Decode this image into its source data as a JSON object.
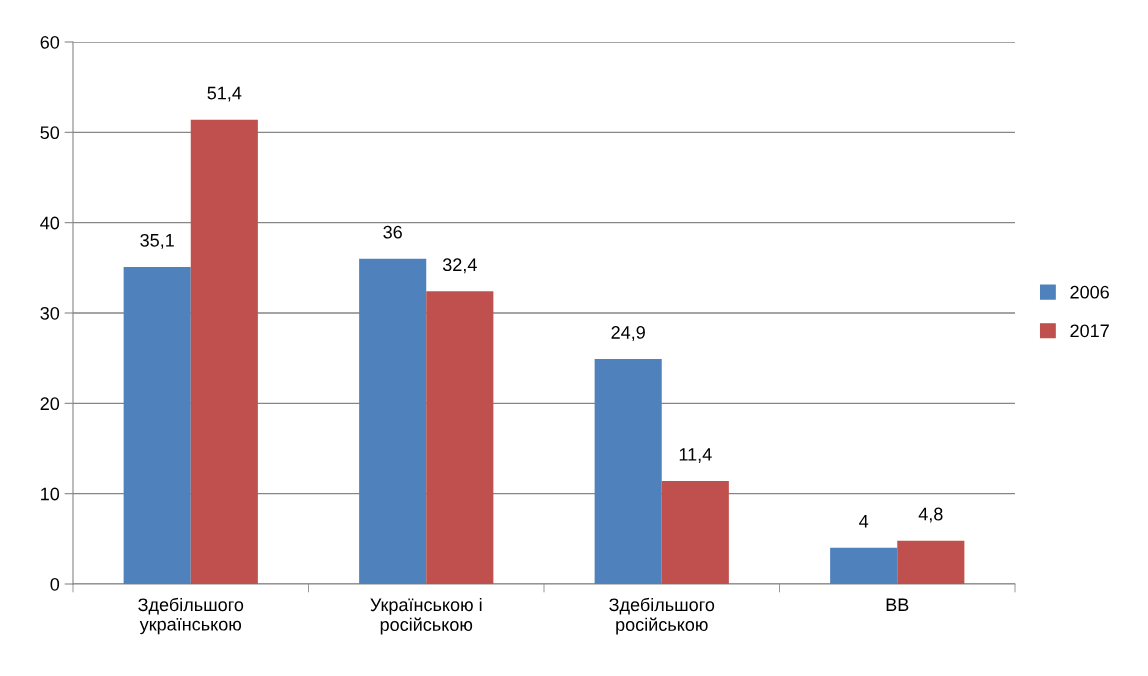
{
  "chart_data": {
    "type": "bar",
    "categories": [
      "Здебільшого\nукраїнською",
      "Українською і\nросійською",
      "Здебільшого\nросійською",
      "ВВ"
    ],
    "series": [
      {
        "name": "2006",
        "color": "#4f81bd",
        "values": [
          35.1,
          36,
          24.9,
          4
        ],
        "value_labels": [
          "35,1",
          "36",
          "24,9",
          "4"
        ]
      },
      {
        "name": "2017",
        "color": "#c0504d",
        "values": [
          51.4,
          32.4,
          11.4,
          4.8
        ],
        "value_labels": [
          "51,4",
          "32,4",
          "11,4",
          "4,8"
        ]
      }
    ],
    "ylim": [
      0,
      60
    ],
    "yticks": [
      0,
      10,
      20,
      30,
      40,
      50,
      60
    ],
    "grid": "y",
    "legend": "right"
  }
}
